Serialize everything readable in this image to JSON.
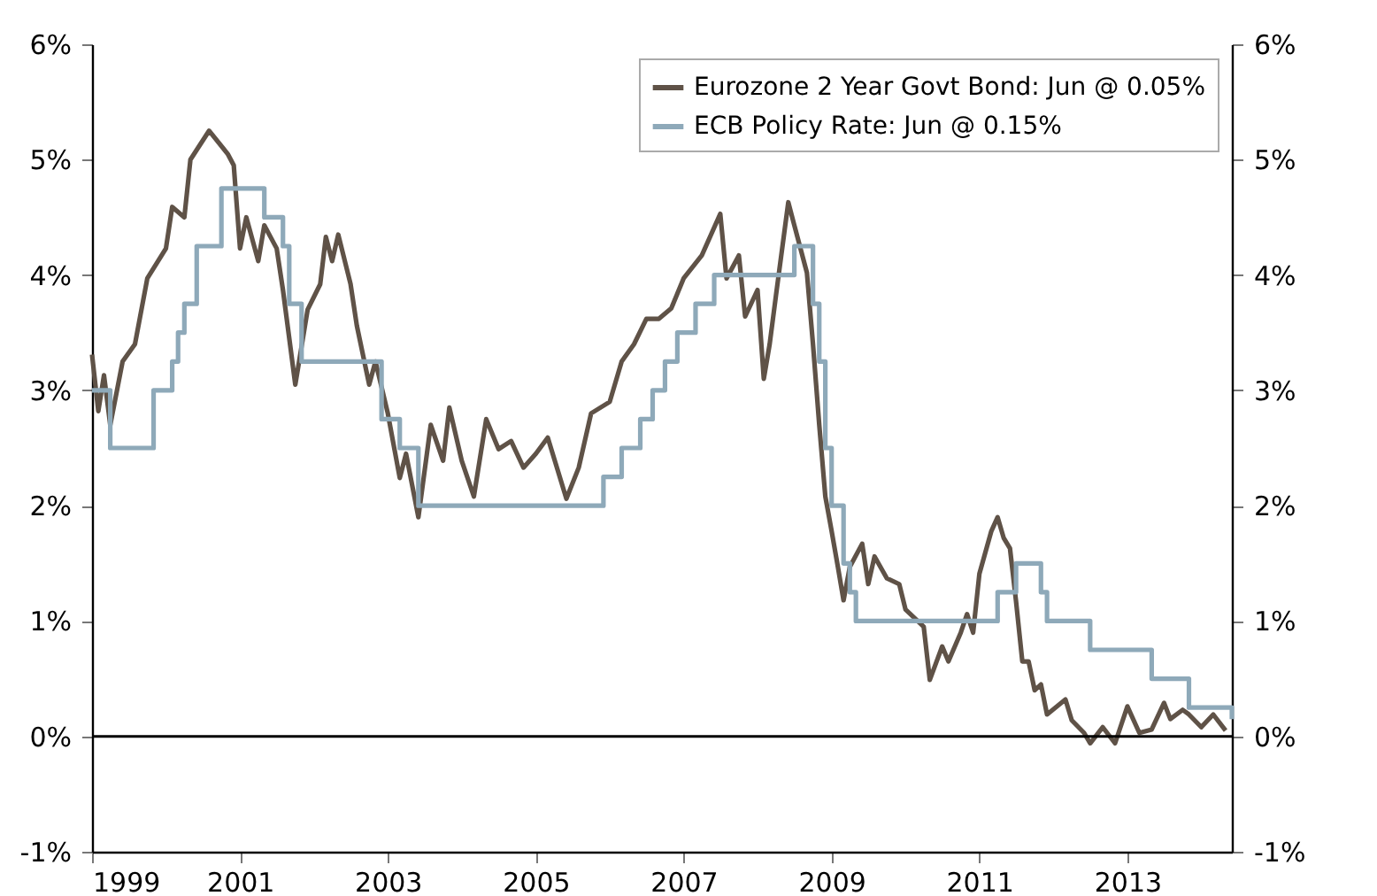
{
  "chart_data": {
    "type": "line",
    "xlim": [
      "1999-01",
      "2014-06"
    ],
    "xticks": [
      "1999",
      "2001",
      "2003",
      "2005",
      "2007",
      "2009",
      "2011",
      "2013"
    ],
    "ylim": [
      -1,
      6
    ],
    "yticks": [
      {
        "value": -1,
        "label": "-1%"
      },
      {
        "value": 0,
        "label": "0%"
      },
      {
        "value": 1,
        "label": "1%"
      },
      {
        "value": 2,
        "label": "2%"
      },
      {
        "value": 3,
        "label": "3%"
      },
      {
        "value": 4,
        "label": "4%"
      },
      {
        "value": 5,
        "label": "5%"
      },
      {
        "value": 6,
        "label": "6%"
      }
    ],
    "y2lim": [
      -1,
      6
    ],
    "y2ticks": [
      {
        "value": -1,
        "label": "-1%"
      },
      {
        "value": 0,
        "label": "0%"
      },
      {
        "value": 1,
        "label": "1%"
      },
      {
        "value": 2,
        "label": "2%"
      },
      {
        "value": 3,
        "label": "3%"
      },
      {
        "value": 4,
        "label": "4%"
      },
      {
        "value": 5,
        "label": "5%"
      },
      {
        "value": 6,
        "label": "6%"
      }
    ],
    "grid": false,
    "legend": "top right",
    "ref_lines": [
      {
        "axis": "y",
        "value": 0,
        "color": "#000000"
      }
    ],
    "series": [
      {
        "name": "Eurozone 2 Year Govt Bond: Jun @ 0.05%",
        "type": "line",
        "color": "#5f5247",
        "x": [
          "1999-01",
          "1999-02",
          "1999-03",
          "1999-04",
          "1999-06",
          "1999-08",
          "1999-10",
          "2000-01",
          "2000-02",
          "2000-04",
          "2000-05",
          "2000-08",
          "2000-11",
          "2000-12",
          "2001-01",
          "2001-02",
          "2001-04",
          "2001-05",
          "2001-07",
          "2001-08",
          "2001-10",
          "2001-12",
          "2002-02",
          "2002-03",
          "2002-04",
          "2002-05",
          "2002-07",
          "2002-08",
          "2002-10",
          "2002-11",
          "2003-01",
          "2003-03",
          "2003-04",
          "2003-06",
          "2003-08",
          "2003-10",
          "2003-11",
          "2004-01",
          "2004-03",
          "2004-05",
          "2004-07",
          "2004-09",
          "2004-11",
          "2005-01",
          "2005-03",
          "2005-06",
          "2005-08",
          "2005-10",
          "2006-01",
          "2006-03",
          "2006-05",
          "2006-07",
          "2006-09",
          "2006-11",
          "2007-01",
          "2007-04",
          "2007-07",
          "2007-08",
          "2007-10",
          "2007-11",
          "2008-01",
          "2008-02",
          "2008-03",
          "2008-04",
          "2008-06",
          "2008-07",
          "2008-09",
          "2008-10",
          "2008-11",
          "2008-12",
          "2009-01",
          "2009-02",
          "2009-03",
          "2009-04",
          "2009-06",
          "2009-07",
          "2009-08",
          "2009-10",
          "2009-12",
          "2010-01",
          "2010-04",
          "2010-05",
          "2010-07",
          "2010-08",
          "2010-10",
          "2010-11",
          "2010-12",
          "2011-01",
          "2011-03",
          "2011-04",
          "2011-05",
          "2011-06",
          "2011-07",
          "2011-08",
          "2011-09",
          "2011-10",
          "2011-11",
          "2011-12",
          "2012-03",
          "2012-04",
          "2012-06",
          "2012-07",
          "2012-09",
          "2012-11",
          "2013-01",
          "2013-03",
          "2013-05",
          "2013-07",
          "2013-08",
          "2013-10",
          "2013-11",
          "2014-01",
          "2014-03",
          "2014-05"
        ],
        "values": [
          3.31,
          2.82,
          3.13,
          2.7,
          3.25,
          3.4,
          3.97,
          4.23,
          4.59,
          4.5,
          5.0,
          5.25,
          5.05,
          4.95,
          4.23,
          4.5,
          4.12,
          4.43,
          4.23,
          3.87,
          3.05,
          3.7,
          3.92,
          4.33,
          4.12,
          4.35,
          3.92,
          3.56,
          3.05,
          3.25,
          2.8,
          2.24,
          2.45,
          1.9,
          2.7,
          2.39,
          2.85,
          2.39,
          2.08,
          2.75,
          2.49,
          2.56,
          2.33,
          2.45,
          2.59,
          2.06,
          2.33,
          2.8,
          2.9,
          3.25,
          3.4,
          3.62,
          3.62,
          3.71,
          3.97,
          4.17,
          4.53,
          3.97,
          4.17,
          3.64,
          3.87,
          3.1,
          3.4,
          3.82,
          4.63,
          4.43,
          4.02,
          3.4,
          2.7,
          2.08,
          1.78,
          1.47,
          1.18,
          1.47,
          1.67,
          1.32,
          1.56,
          1.37,
          1.32,
          1.1,
          0.95,
          0.49,
          0.78,
          0.65,
          0.9,
          1.06,
          0.9,
          1.41,
          1.78,
          1.9,
          1.72,
          1.63,
          1.17,
          0.65,
          0.65,
          0.4,
          0.45,
          0.19,
          0.32,
          0.14,
          0.03,
          -0.06,
          0.08,
          -0.06,
          0.26,
          0.03,
          0.06,
          0.29,
          0.15,
          0.23,
          0.19,
          0.08,
          0.19,
          0.05
        ]
      },
      {
        "name": "ECB Policy Rate: Jun @ 0.15%",
        "type": "step",
        "color": "#8ea9b9",
        "x": [
          "1999-01",
          "1999-04",
          "1999-11",
          "2000-02",
          "2000-03",
          "2000-04",
          "2000-06",
          "2000-10",
          "2001-05",
          "2001-08",
          "2001-09",
          "2001-11",
          "2002-12",
          "2003-03",
          "2003-06",
          "2005-12",
          "2006-03",
          "2006-06",
          "2006-08",
          "2006-10",
          "2006-12",
          "2007-03",
          "2007-06",
          "2008-07",
          "2008-10",
          "2008-11",
          "2008-12",
          "2009-01",
          "2009-03",
          "2009-04",
          "2009-05",
          "2011-04",
          "2011-07",
          "2011-11",
          "2011-12",
          "2012-07",
          "2013-05",
          "2013-11",
          "2014-06"
        ],
        "values": [
          3.0,
          2.5,
          3.0,
          3.25,
          3.5,
          3.75,
          4.25,
          4.75,
          4.5,
          4.25,
          3.75,
          3.25,
          2.75,
          2.5,
          2.0,
          2.25,
          2.5,
          2.75,
          3.0,
          3.25,
          3.5,
          3.75,
          4.0,
          4.25,
          3.75,
          3.25,
          2.5,
          2.0,
          1.5,
          1.25,
          1.0,
          1.25,
          1.5,
          1.25,
          1.0,
          0.75,
          0.5,
          0.25,
          0.15
        ]
      }
    ]
  }
}
